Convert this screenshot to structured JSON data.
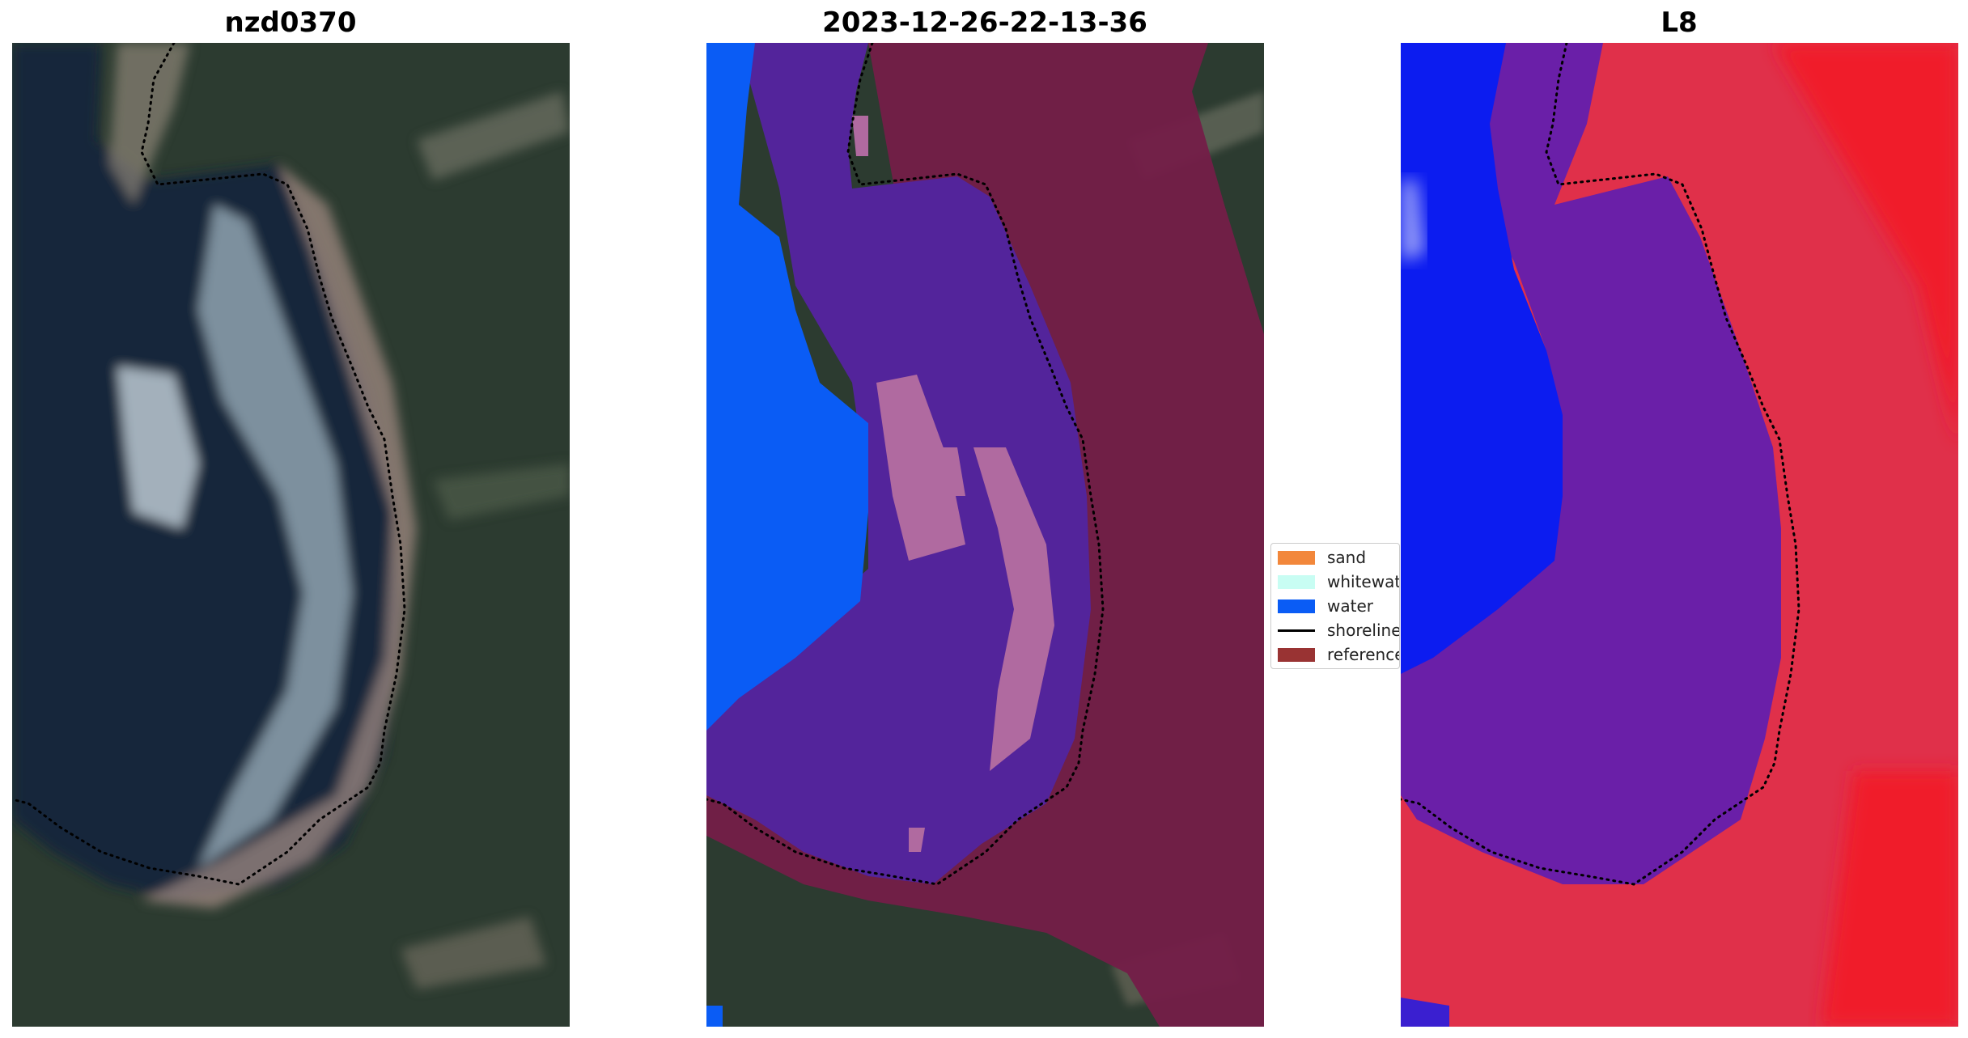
{
  "panels": [
    {
      "title": "nzd0370"
    },
    {
      "title": "2023-12-26-22-13-36"
    },
    {
      "title": "L8"
    }
  ],
  "legend": {
    "items": [
      {
        "label": "sand",
        "color": "#f2873b",
        "kind": "patch"
      },
      {
        "label": "whitewater",
        "color": "#c8fdf3",
        "kind": "patch"
      },
      {
        "label": "water",
        "color": "#0a5cf5",
        "kind": "patch"
      },
      {
        "label": "shoreline",
        "color": "#000000",
        "kind": "line"
      },
      {
        "label": "reference",
        "color": "#993333",
        "kind": "patch"
      }
    ]
  },
  "colors": {
    "land": "#2a3a2e",
    "lagoon_water": "#1a2c3a",
    "beach_sand": "#b8a092",
    "whitewater_overlay": "#b06aa0",
    "reference_overlay": "#741d48",
    "water_class": "#0a5cf5",
    "inside_overlay": "#53249b",
    "l8_red": "#e0304a",
    "l8_blue": "#0c1cf0",
    "l8_purple": "#6a1fa8"
  }
}
